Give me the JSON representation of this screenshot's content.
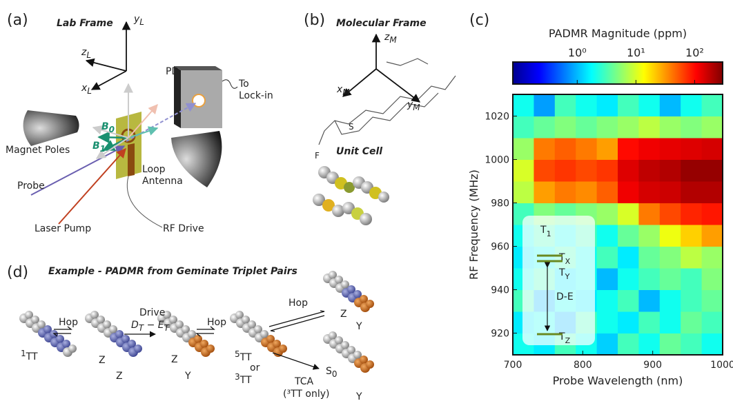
{
  "panels": {
    "a": {
      "label": "(a)",
      "frame_title": "Lab Frame",
      "y_axis": {
        "base": "y",
        "sub": "L"
      },
      "z_axis": {
        "base": "z",
        "sub": "L"
      },
      "x_axis": {
        "base": "x",
        "sub": "L"
      },
      "pd": "PD",
      "lockin_1": "To",
      "lockin_2": "Lock-in",
      "magnet": "Magnet Poles",
      "probe": "Probe",
      "pump": "Laser Pump",
      "antenna_1": "Loop",
      "antenna_2": "Antenna",
      "rf": "RF Drive",
      "b0": {
        "base": "B",
        "sub": "0"
      },
      "b1": {
        "base": "B",
        "sub": "1"
      }
    },
    "b": {
      "label": "(b)",
      "frame_title": "Molecular Frame",
      "z_axis": {
        "base": "z",
        "sub": "M"
      },
      "x_axis": {
        "base": "x",
        "sub": "M"
      },
      "y_axis": {
        "base": "y",
        "sub": "M"
      },
      "fluorine": "F",
      "sulfur": "S",
      "unit_cell": "Unit Cell"
    },
    "d": {
      "label": "(d)",
      "title": "Example - PADMR from Geminate Triplet Pairs",
      "hop_1": "Hop",
      "drive": "Drive",
      "drive_term": {
        "d": "D",
        "d_sub": "T",
        "minus": " − ",
        "e": "E",
        "e_sub": "T"
      },
      "hop_2": "Hop",
      "hop_3": "Hop",
      "singlet": {
        "sup": "1",
        "base": "TT"
      },
      "z_1": "Z",
      "z_2": "Z",
      "z_3": "Z",
      "y_1": "Y",
      "quintet": {
        "sup": "5",
        "base": "TT"
      },
      "or": "or",
      "triplet": {
        "sup": "3",
        "base": "TT"
      },
      "tca": "TCA",
      "tca_note": "(³TT only)",
      "s0": {
        "base": "S",
        "sub": "0"
      },
      "z_4": "Z",
      "y_2": "Y",
      "y_3": "Y"
    }
  },
  "chart_data": {
    "type": "heatmap",
    "panel_label": "(c)",
    "colorbar_title": "PADMR Magnitude (ppm)",
    "colormap": "jet",
    "log_color_scale": true,
    "clim": [
      0.08,
      300
    ],
    "colorbar_ticks": [
      {
        "value": 1,
        "label": "10⁰"
      },
      {
        "value": 10,
        "label": "10¹"
      },
      {
        "value": 100,
        "label": "10²"
      }
    ],
    "xlabel": "Probe Wavelength (nm)",
    "ylabel": "RF Frequency (MHz)",
    "xlim": [
      700,
      1000
    ],
    "ylim": [
      910,
      1030
    ],
    "xticks": [
      700,
      800,
      900,
      1000
    ],
    "yticks": [
      920,
      940,
      960,
      980,
      1000,
      1020
    ],
    "x_bins": [
      700,
      730,
      760,
      790,
      820,
      850,
      880,
      910,
      940,
      970,
      1000
    ],
    "y_bins": [
      910,
      920,
      930,
      940,
      950,
      960,
      970,
      980,
      990,
      1000,
      1010,
      1020,
      1030
    ],
    "values": [
      [
        2,
        1.5,
        3,
        2,
        1.2,
        3,
        2,
        4,
        3,
        2
      ],
      [
        1.5,
        2,
        1,
        3,
        2,
        1.5,
        3,
        2,
        4,
        3
      ],
      [
        3,
        1,
        2,
        1.5,
        2,
        3,
        1,
        2,
        3,
        4
      ],
      [
        2,
        3,
        1.5,
        2,
        1,
        2,
        3,
        4,
        3,
        5
      ],
      [
        1.5,
        2,
        3,
        2,
        3,
        1.5,
        4,
        5,
        8,
        6
      ],
      [
        2,
        3,
        2,
        3,
        2,
        4,
        6,
        12,
        20,
        30
      ],
      [
        3,
        5,
        4,
        5,
        6,
        10,
        40,
        60,
        80,
        90
      ],
      [
        8,
        30,
        40,
        35,
        50,
        120,
        150,
        160,
        200,
        200
      ],
      [
        10,
        60,
        70,
        60,
        70,
        140,
        180,
        200,
        250,
        250
      ],
      [
        6,
        40,
        50,
        40,
        30,
        100,
        120,
        130,
        140,
        150
      ],
      [
        3,
        4,
        5,
        4,
        5,
        6,
        8,
        6,
        5,
        6
      ],
      [
        2,
        0.8,
        3,
        2,
        1.5,
        3,
        2,
        1,
        2,
        3
      ]
    ],
    "annotation": {
      "t1": {
        "base": "T",
        "sub": "1"
      },
      "tx": {
        "base": "T",
        "sub": "X"
      },
      "ty": {
        "base": "T",
        "sub": "Y"
      },
      "de": "D-E",
      "tz": {
        "base": "T",
        "sub": "Z"
      }
    }
  }
}
